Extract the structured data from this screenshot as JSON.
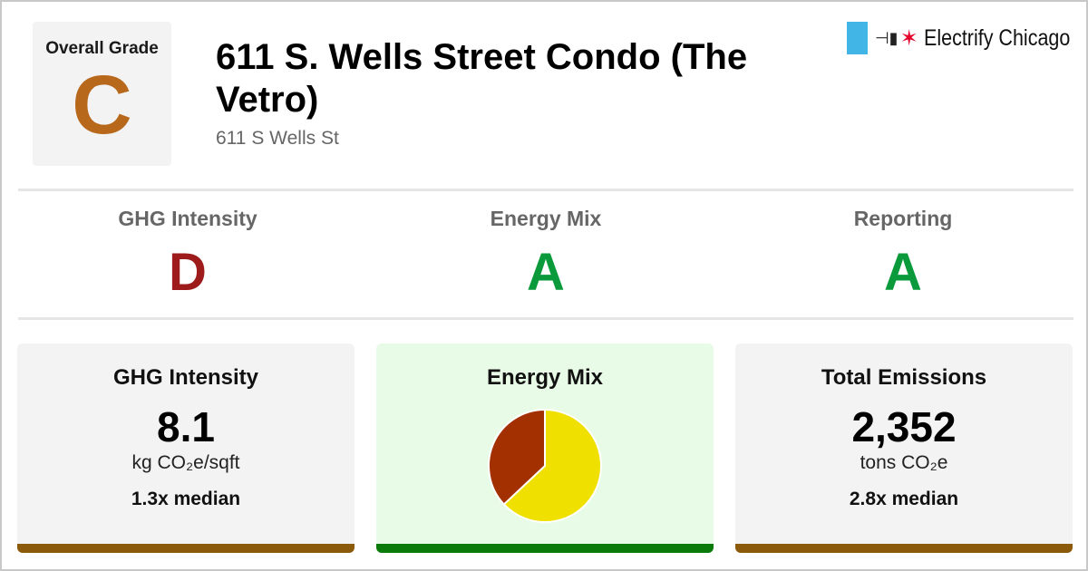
{
  "header": {
    "overall_grade_label": "Overall Grade",
    "overall_grade": "C",
    "overall_grade_color": "#b8681b",
    "title": "611 S. Wells Street Condo (The Vetro)",
    "address": "611 S Wells St"
  },
  "logo": {
    "plug_icon": "⊣▮",
    "star": "✶",
    "text": "Electrify Chicago",
    "flag_color": "#41b6e6",
    "star_color": "#e4002b"
  },
  "grades": [
    {
      "label": "GHG Intensity",
      "grade": "D",
      "color": "#9e1b1b"
    },
    {
      "label": "Energy Mix",
      "grade": "A",
      "color": "#0a9a3c"
    },
    {
      "label": "Reporting",
      "grade": "A",
      "color": "#0a9a3c"
    }
  ],
  "cards": {
    "ghg": {
      "title": "GHG Intensity",
      "value": "8.1",
      "unit": "kg CO₂e/sqft",
      "median": "1.3x median",
      "bar_color": "#8b5a0a",
      "bg": "#f3f3f3"
    },
    "mix": {
      "title": "Energy Mix",
      "bar_color": "#0a7a0a",
      "bg": "#e8fbe6"
    },
    "total": {
      "title": "Total Emissions",
      "value": "2,352",
      "unit": "tons CO₂e",
      "median": "2.8x median",
      "bar_color": "#8b5a0a",
      "bg": "#f3f3f3"
    }
  },
  "chart_data": {
    "type": "pie",
    "slices": [
      {
        "fraction": 0.63,
        "color": "#f0e000"
      },
      {
        "fraction": 0.37,
        "color": "#a33000"
      }
    ],
    "start_angle_deg": 0
  }
}
